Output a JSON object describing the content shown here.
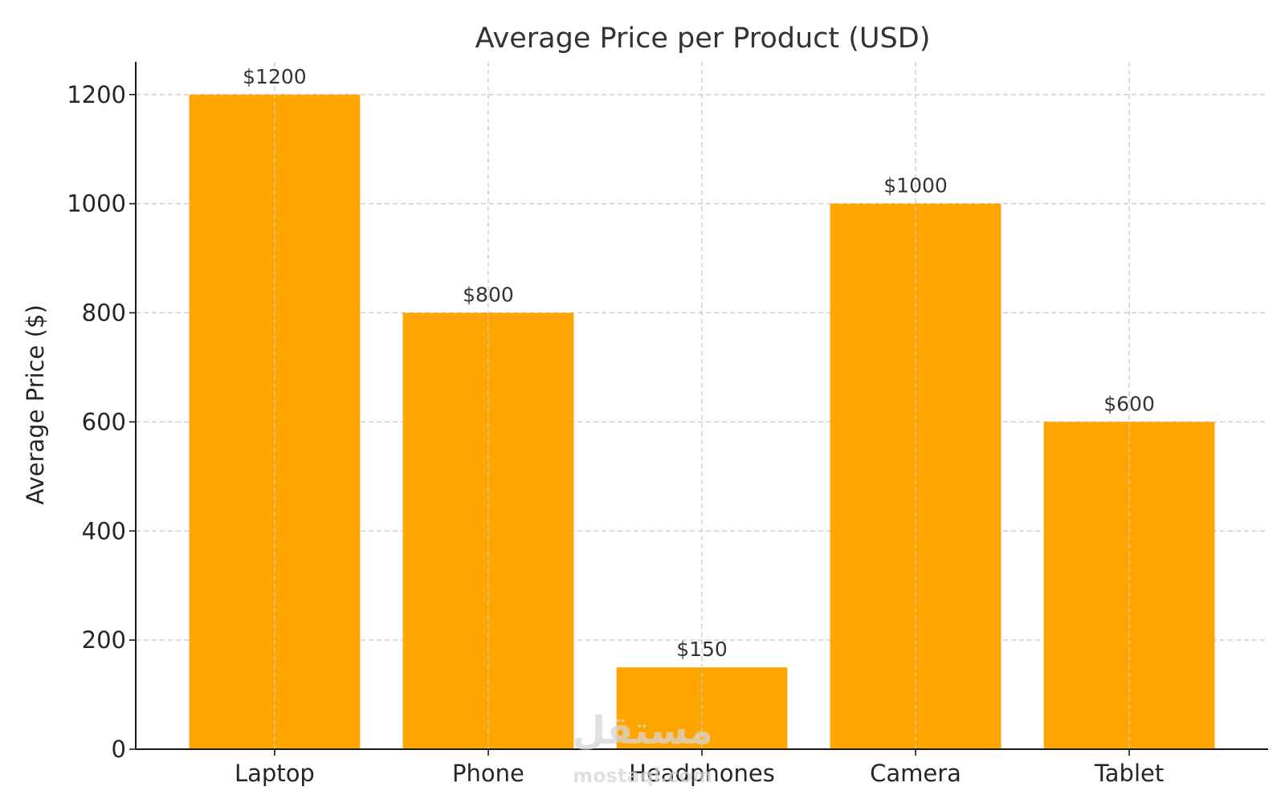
{
  "chart_data": {
    "type": "bar",
    "title": "Average Price per Product (USD)",
    "xlabel": "",
    "ylabel": "Average Price ($)",
    "categories": [
      "Laptop",
      "Phone",
      "Headphones",
      "Camera",
      "Tablet"
    ],
    "values": [
      1200,
      800,
      150,
      1000,
      600
    ],
    "data_labels": [
      "$1200",
      "$800",
      "$150",
      "$1000",
      "$600"
    ],
    "ylim": [
      0,
      1260
    ],
    "yticks": [
      0,
      200,
      400,
      600,
      800,
      1000,
      1200
    ],
    "grid": true,
    "bar_color": "#FFA500"
  },
  "watermark": {
    "arabic": "مستقل",
    "latin": "mostaql.com"
  }
}
